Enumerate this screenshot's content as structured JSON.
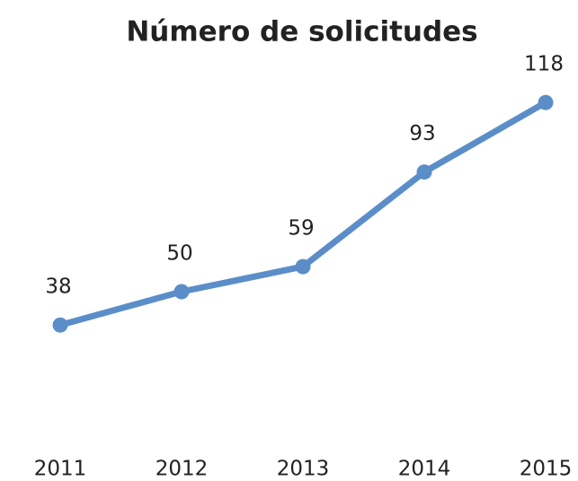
{
  "chart_data": {
    "type": "line",
    "title": "Número de solicitudes",
    "categories": [
      "2011",
      "2012",
      "2013",
      "2014",
      "2015"
    ],
    "values": [
      38,
      50,
      59,
      93,
      118
    ],
    "color": "#5b8ec8",
    "ylim": [
      0,
      140
    ]
  }
}
